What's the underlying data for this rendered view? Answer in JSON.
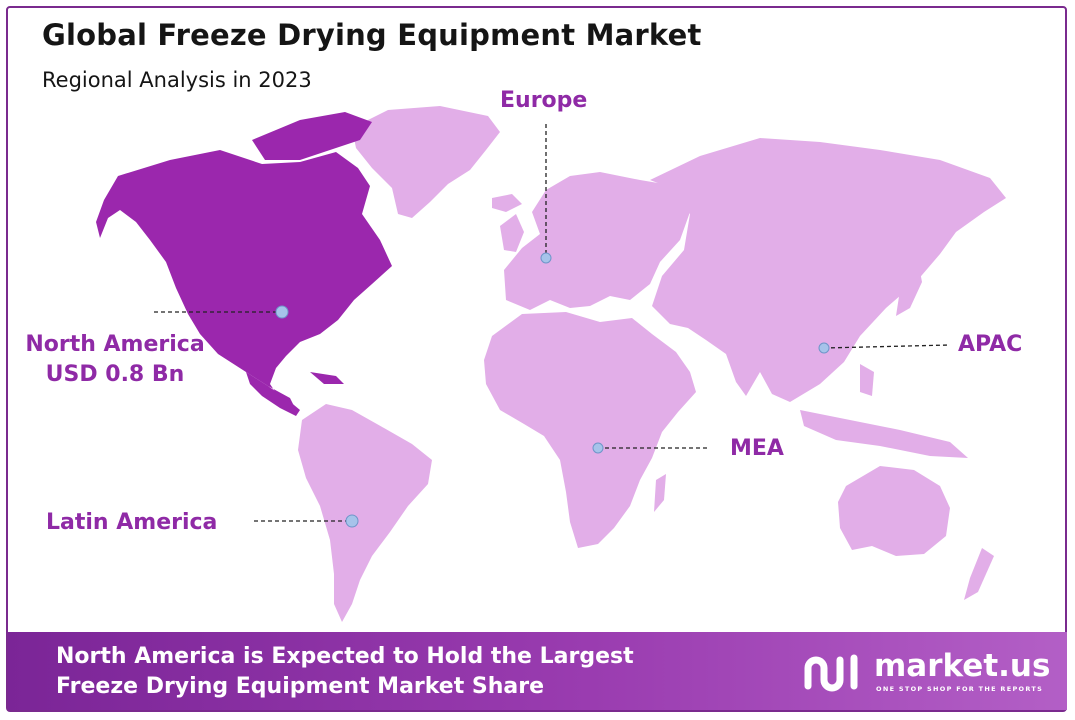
{
  "header": {
    "title": "Global Freeze Drying Equipment Market",
    "subtitle": "Regional Analysis in 2023"
  },
  "regions": [
    {
      "name": "North America",
      "value": "USD 0.8 Bn",
      "highlighted": true
    },
    {
      "name": "Europe",
      "value": "",
      "highlighted": false
    },
    {
      "name": "APAC",
      "value": "",
      "highlighted": false
    },
    {
      "name": "MEA",
      "value": "",
      "highlighted": false
    },
    {
      "name": "Latin America",
      "value": "",
      "highlighted": false
    }
  ],
  "footer": {
    "line1": "North America is Expected to Hold the Largest",
    "line2": "Freeze Drying Equipment Market Share"
  },
  "brand": {
    "name": "market.us",
    "tagline": "ONE STOP SHOP FOR THE REPORTS",
    "logo_icon": "market-us-logo-icon"
  },
  "colors": {
    "highlight_region": "#9b27ad",
    "other_regions": "#e2aee8",
    "label_text": "#8f2aa6",
    "marker": "#a6c3ea",
    "footer_bg": "#8a32a6",
    "frame_border": "#7a2a8e"
  }
}
